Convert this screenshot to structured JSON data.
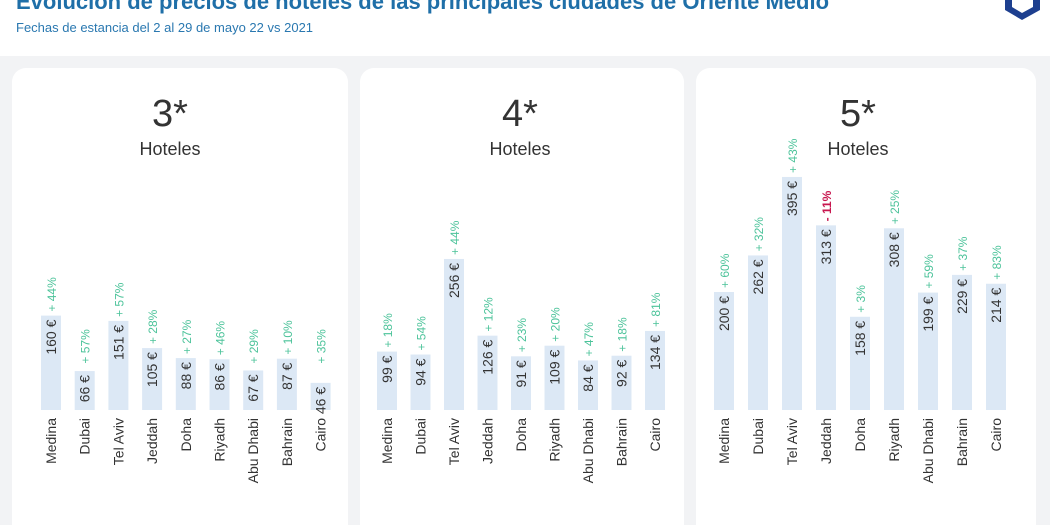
{
  "header": {
    "title": "Evolución de precios de hoteles de las principales ciudades de Oriente Medio",
    "subtitle": "Fechas de estancia del 2 al 29 de mayo 22 vs 2021"
  },
  "colors": {
    "bar": "#dce8f5",
    "positive": "#4cc39a",
    "negative": "#c8174f",
    "title": "#1f6fa8",
    "logo": "#1d3f8f"
  },
  "icons": {
    "logo": "hexagon-shield-logo"
  },
  "chart_data": [
    {
      "type": "bar",
      "title": "3*",
      "subtitle": "Hoteles",
      "categories": [
        "Medina",
        "Dubai",
        "Tel Aviv",
        "Jeddah",
        "Doha",
        "Riyadh",
        "Abu Dhabi",
        "Bahrain",
        "Cairo"
      ],
      "values": [
        160,
        66,
        151,
        105,
        88,
        86,
        67,
        87,
        46
      ],
      "value_labels": [
        "160 €",
        "66 €",
        "151 €",
        "105 €",
        "88 €",
        "86 €",
        "67 €",
        "87 €",
        "46 €"
      ],
      "change_labels": [
        "+ 44%",
        "+ 57%",
        "+ 57%",
        "+ 28%",
        "+ 27%",
        "+ 46%",
        "+ 29%",
        "+ 10%",
        "+ 35%"
      ]
    },
    {
      "type": "bar",
      "title": "4*",
      "subtitle": "Hoteles",
      "categories": [
        "Medina",
        "Dubai",
        "Tel Aviv",
        "Jeddah",
        "Doha",
        "Riyadh",
        "Abu Dhabi",
        "Bahrain",
        "Cairo"
      ],
      "values": [
        99,
        94,
        256,
        126,
        91,
        109,
        84,
        92,
        134
      ],
      "value_labels": [
        "99 €",
        "94 €",
        "256 €",
        "126 €",
        "91 €",
        "109 €",
        "84 €",
        "92 €",
        "134 €"
      ],
      "change_labels": [
        "+ 18%",
        "+ 54%",
        "+ 44%",
        "+ 12%",
        "+ 23%",
        "+ 20%",
        "+ 47%",
        "+ 18%",
        "+ 81%"
      ]
    },
    {
      "type": "bar",
      "title": "5*",
      "subtitle": "Hoteles",
      "categories": [
        "Medina",
        "Dubai",
        "Tel Aviv",
        "Jeddah",
        "Doha",
        "Riyadh",
        "Abu Dhabi",
        "Bahrain",
        "Cairo"
      ],
      "values": [
        200,
        262,
        395,
        313,
        158,
        308,
        199,
        229,
        214
      ],
      "value_labels": [
        "200 €",
        "262 €",
        "395 €",
        "313 €",
        "158 €",
        "308 €",
        "199 €",
        "229 €",
        "214 €"
      ],
      "change_labels": [
        "+ 60%",
        "+ 32%",
        "+ 43%",
        "- 11%",
        "+ 3%",
        "+ 25%",
        "+ 59%",
        "+ 37%",
        "+ 83%"
      ]
    }
  ]
}
